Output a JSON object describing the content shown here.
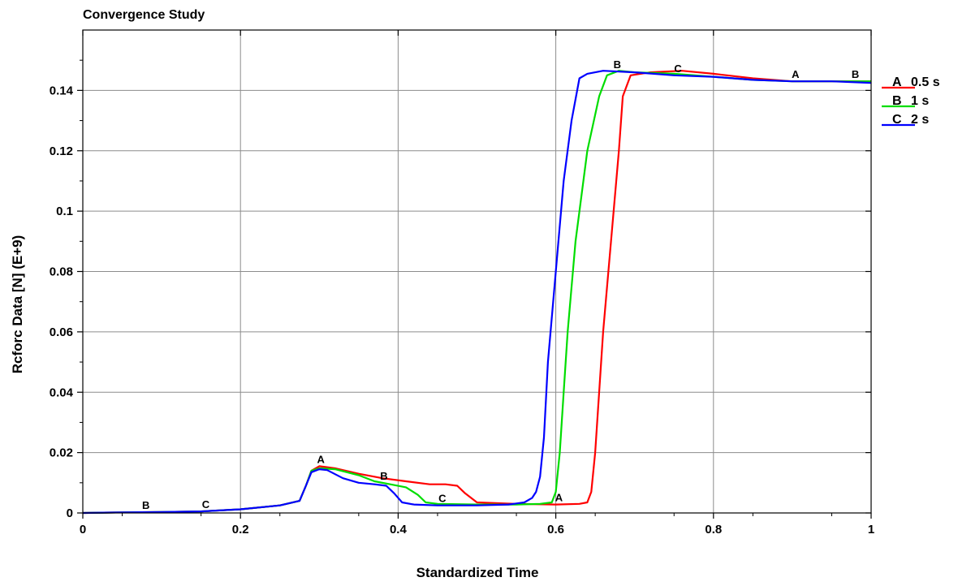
{
  "chart_data": {
    "type": "line",
    "title": "Convergence Study",
    "xlabel": "Standardized Time",
    "ylabel": "Rcforc Data [N] (E+9)",
    "xlim": [
      0,
      1
    ],
    "ylim": [
      0,
      0.16
    ],
    "xticks": [
      0,
      0.2,
      0.4,
      0.6,
      0.8,
      1
    ],
    "xtick_labels": [
      "0",
      "0.2",
      "0.4",
      "0.6",
      "0.8",
      "1"
    ],
    "yticks": [
      0,
      0.02,
      0.04,
      0.06,
      0.08,
      0.1,
      0.12,
      0.14
    ],
    "ytick_labels": [
      "0",
      "0.02",
      "0.04",
      "0.06",
      "0.08",
      "0.1",
      "0.12",
      "0.14"
    ],
    "grid": true,
    "legend_position": "right",
    "series": [
      {
        "marker": "A",
        "name": "0.5 s",
        "color": "#ff0000",
        "markers_at": [
          0.302,
          0.604,
          0.904
        ],
        "x": [
          0,
          0.05,
          0.1,
          0.15,
          0.2,
          0.25,
          0.275,
          0.283,
          0.29,
          0.3,
          0.32,
          0.35,
          0.38,
          0.41,
          0.44,
          0.46,
          0.475,
          0.485,
          0.5,
          0.55,
          0.6,
          0.63,
          0.64,
          0.645,
          0.65,
          0.655,
          0.66,
          0.67,
          0.68,
          0.685,
          0.695,
          0.72,
          0.76,
          0.8,
          0.85,
          0.9,
          0.95,
          1.0
        ],
        "y": [
          0,
          0.0002,
          0.0003,
          0.0005,
          0.0012,
          0.0025,
          0.004,
          0.009,
          0.014,
          0.0155,
          0.0148,
          0.013,
          0.0115,
          0.0105,
          0.0095,
          0.0095,
          0.009,
          0.0065,
          0.0035,
          0.003,
          0.0028,
          0.003,
          0.0035,
          0.007,
          0.02,
          0.04,
          0.06,
          0.09,
          0.12,
          0.138,
          0.145,
          0.146,
          0.1465,
          0.1455,
          0.144,
          0.143,
          0.143,
          0.143
        ]
      },
      {
        "marker": "B",
        "name": "1 s",
        "color": "#00dd00",
        "markers_at": [
          0.08,
          0.382,
          0.678,
          0.98
        ],
        "x": [
          0,
          0.05,
          0.1,
          0.15,
          0.2,
          0.25,
          0.275,
          0.283,
          0.29,
          0.3,
          0.32,
          0.35,
          0.37,
          0.39,
          0.41,
          0.425,
          0.435,
          0.45,
          0.5,
          0.55,
          0.58,
          0.595,
          0.6,
          0.605,
          0.61,
          0.615,
          0.625,
          0.64,
          0.655,
          0.665,
          0.68,
          0.7,
          0.75,
          0.8,
          0.85,
          0.9,
          0.95,
          1.0
        ],
        "y": [
          0,
          0.0002,
          0.0003,
          0.0005,
          0.0012,
          0.0025,
          0.004,
          0.009,
          0.014,
          0.0148,
          0.0145,
          0.0125,
          0.0105,
          0.0095,
          0.0085,
          0.006,
          0.0035,
          0.003,
          0.0028,
          0.0028,
          0.003,
          0.0035,
          0.007,
          0.02,
          0.04,
          0.06,
          0.09,
          0.12,
          0.138,
          0.145,
          0.1465,
          0.146,
          0.1455,
          0.1445,
          0.1435,
          0.143,
          0.143,
          0.143
        ]
      },
      {
        "marker": "C",
        "name": "2 s",
        "color": "#0000ff",
        "markers_at": [
          0.156,
          0.456,
          0.755
        ],
        "x": [
          0,
          0.05,
          0.1,
          0.15,
          0.2,
          0.25,
          0.275,
          0.283,
          0.29,
          0.3,
          0.31,
          0.33,
          0.35,
          0.37,
          0.385,
          0.395,
          0.405,
          0.42,
          0.45,
          0.5,
          0.54,
          0.56,
          0.57,
          0.575,
          0.58,
          0.585,
          0.59,
          0.6,
          0.61,
          0.62,
          0.63,
          0.64,
          0.66,
          0.7,
          0.75,
          0.8,
          0.85,
          0.9,
          0.95,
          1.0
        ],
        "y": [
          0,
          0.0002,
          0.0003,
          0.0005,
          0.0012,
          0.0025,
          0.004,
          0.009,
          0.0135,
          0.0145,
          0.0142,
          0.0115,
          0.01,
          0.0095,
          0.009,
          0.0065,
          0.0035,
          0.0028,
          0.0025,
          0.0025,
          0.0028,
          0.0035,
          0.005,
          0.007,
          0.012,
          0.025,
          0.05,
          0.08,
          0.11,
          0.13,
          0.144,
          0.1455,
          0.1465,
          0.146,
          0.145,
          0.1445,
          0.1435,
          0.143,
          0.143,
          0.1425
        ]
      }
    ]
  }
}
